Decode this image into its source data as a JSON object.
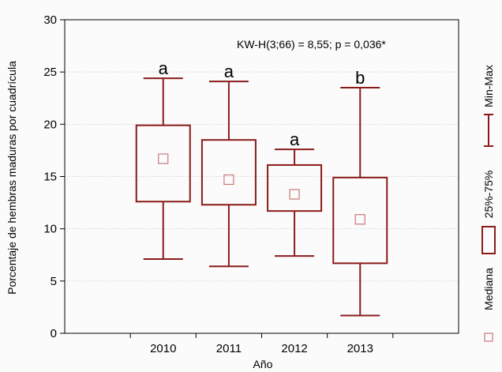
{
  "colors": {
    "box": "#8b1a1a",
    "median_marker": "#c87878",
    "grid": "#c8c8c8",
    "axis": "#000000"
  },
  "chart_data": {
    "type": "box",
    "title": "",
    "xlabel": "Año",
    "ylabel": "Porcentaje de hembras maduras por cuadrícula",
    "ylim": [
      0,
      30
    ],
    "yticks": [
      0,
      5,
      10,
      15,
      20,
      25,
      30
    ],
    "categories": [
      "2010",
      "2011",
      "2012",
      "2013"
    ],
    "series": [
      {
        "category": "2010",
        "min": 7.1,
        "q1": 12.6,
        "median": 16.7,
        "q3": 19.9,
        "max": 24.4,
        "group_letter": "a"
      },
      {
        "category": "2011",
        "min": 6.4,
        "q1": 12.3,
        "median": 14.7,
        "q3": 18.5,
        "max": 24.1,
        "group_letter": "a"
      },
      {
        "category": "2012",
        "min": 7.4,
        "q1": 11.7,
        "median": 13.3,
        "q3": 16.1,
        "max": 17.6,
        "group_letter": "a"
      },
      {
        "category": "2013",
        "min": 1.7,
        "q1": 6.7,
        "median": 10.9,
        "q3": 14.9,
        "max": 23.5,
        "group_letter": "b"
      }
    ],
    "annotation": "KW-H(3;66) = 8,55; p = 0,036*",
    "grid": true,
    "legend": {
      "placement": "right, rotated",
      "entries": [
        {
          "label": "Min-Max",
          "symbol": "whisker"
        },
        {
          "label": "25%-75%",
          "symbol": "box"
        },
        {
          "label": "Mediana",
          "symbol": "square"
        }
      ]
    }
  }
}
